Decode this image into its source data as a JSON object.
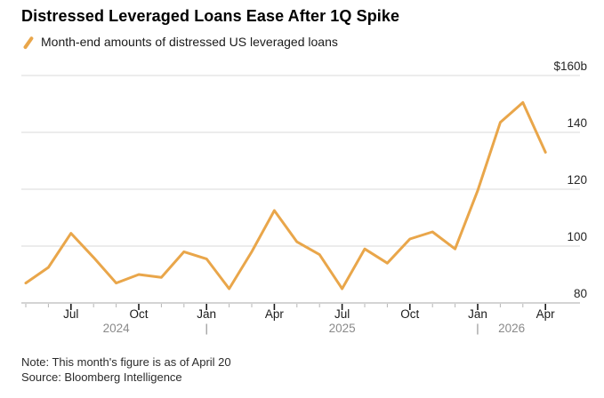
{
  "header": {
    "title": "Distressed Leveraged Loans Ease After 1Q Spike",
    "legend_label": "Month-end amounts of distressed US leveraged loans"
  },
  "footer": {
    "note": "Note: This month's figure is as of April 20",
    "source": "Source: Bloomberg Intelligence"
  },
  "chart_data": {
    "type": "line",
    "title": "Distressed Leveraged Loans Ease After 1Q Spike",
    "subtitle": "Month-end amounts of distressed US leveraged loans",
    "xlabel": "",
    "ylabel": "$b",
    "ylim": [
      80,
      160
    ],
    "grid": true,
    "legend_position": "top-left",
    "categories": [
      "May 2024",
      "Jun 2024",
      "Jul 2024",
      "Aug 2024",
      "Sep 2024",
      "Oct 2024",
      "Nov 2024",
      "Dec 2024",
      "Jan 2025",
      "Feb 2025",
      "Mar 2025",
      "Apr 2025",
      "May 2025",
      "Jun 2025",
      "Jul 2025",
      "Aug 2025",
      "Sep 2025",
      "Oct 2025",
      "Nov 2025",
      "Dec 2025",
      "Jan 2026",
      "Feb 2026",
      "Mar 2026",
      "Apr 2026"
    ],
    "series": [
      {
        "name": "Month-end amounts of distressed US leveraged loans",
        "values": [
          87,
          92.5,
          104.5,
          96,
          87,
          90,
          89,
          98,
          95.5,
          85,
          98,
          112.5,
          101.5,
          97,
          85,
          99,
          94,
          102.5,
          105,
          99,
          119.5,
          143.5,
          150.5,
          133
        ]
      }
    ],
    "y_ticks": [
      {
        "value": 160,
        "label": "$160b"
      },
      {
        "value": 140,
        "label": "140"
      },
      {
        "value": 120,
        "label": "120"
      },
      {
        "value": 100,
        "label": "100"
      },
      {
        "value": 80,
        "label": "80"
      }
    ],
    "x_major_ticks": [
      {
        "index": 2,
        "label": "Jul"
      },
      {
        "index": 5,
        "label": "Oct"
      },
      {
        "index": 8,
        "label": "Jan"
      },
      {
        "index": 11,
        "label": "Apr"
      },
      {
        "index": 14,
        "label": "Jul"
      },
      {
        "index": 17,
        "label": "Oct"
      },
      {
        "index": 20,
        "label": "Jan"
      },
      {
        "index": 23,
        "label": "Apr"
      }
    ],
    "year_labels": [
      {
        "index": 4,
        "label": "2024"
      },
      {
        "index": 14,
        "label": "2025"
      },
      {
        "index": 21.5,
        "label": "2026"
      }
    ],
    "year_separator_indices": [
      8,
      20
    ],
    "colors": {
      "line": "#E9A64A",
      "grid": "#D9D9D9",
      "axis": "#A8A8A8",
      "tick_minor": "#B5B5B5",
      "tick_major": "#1a1a1a"
    }
  }
}
